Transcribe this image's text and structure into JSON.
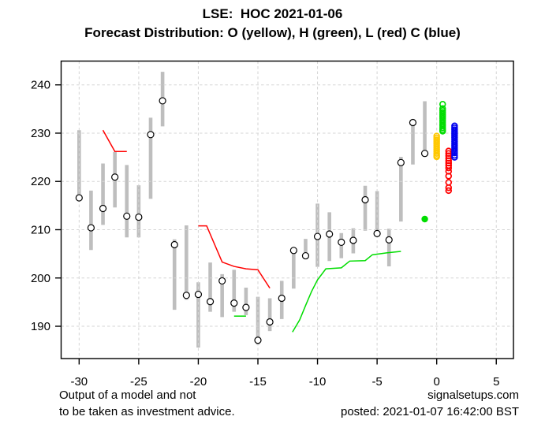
{
  "header": {
    "title": "LSE:  HOC 2021-01-06",
    "subtitle": "Forecast Distribution: O (yellow), H (green), L (red) C (blue)"
  },
  "footer": {
    "disclaimer_line1": "Output of a model and not",
    "disclaimer_line2": "to be taken as investment advice.",
    "site": "signalsetups.com",
    "posted": "posted: 2021-01-07 16:42:00 BST"
  },
  "chart_data": {
    "type": "scatter",
    "title": "LSE:  HOC 2021-01-06",
    "subtitle": "Forecast Distribution: O (yellow), H (green), L (red) C (blue)",
    "xlabel": "",
    "ylabel": "",
    "xlim": [
      -31.51,
      6.44
    ],
    "ylim": [
      183.31,
      244.93
    ],
    "x_ticks": [
      -30,
      -25,
      -20,
      -15,
      -10,
      -5,
      0,
      5
    ],
    "y_ticks": [
      190,
      200,
      210,
      220,
      230,
      240
    ],
    "grid": true,
    "legend_position": "none",
    "bars_note": "grey vertical bar = daily high-low range, black open circle = close",
    "bars": [
      {
        "x": -30,
        "high": 230.6,
        "low": 216.2,
        "close": 216.6
      },
      {
        "x": -29,
        "high": 218.1,
        "low": 205.8,
        "close": 210.4
      },
      {
        "x": -28,
        "high": 223.7,
        "low": 211.0,
        "close": 214.4
      },
      {
        "x": -27,
        "high": 226.1,
        "low": 214.6,
        "close": 220.9
      },
      {
        "x": -26,
        "high": 223.4,
        "low": 208.4,
        "close": 212.8
      },
      {
        "x": -25,
        "high": 219.2,
        "low": 208.4,
        "close": 212.6
      },
      {
        "x": -24,
        "high": 233.2,
        "low": 216.4,
        "close": 229.7
      },
      {
        "x": -23,
        "high": 242.7,
        "low": 231.4,
        "close": 236.7
      },
      {
        "x": -22,
        "high": 208.0,
        "low": 193.4,
        "close": 206.9
      },
      {
        "x": -21,
        "high": 210.9,
        "low": 195.5,
        "close": 196.4
      },
      {
        "x": -20,
        "high": 199.1,
        "low": 185.6,
        "close": 196.6
      },
      {
        "x": -19,
        "high": 203.2,
        "low": 193.0,
        "close": 195.1
      },
      {
        "x": -18,
        "high": 200.8,
        "low": 191.9,
        "close": 199.4
      },
      {
        "x": -17,
        "high": 201.7,
        "low": 193.0,
        "close": 194.8
      },
      {
        "x": -16,
        "high": 198.0,
        "low": 192.3,
        "close": 193.9
      },
      {
        "x": -15,
        "high": 196.1,
        "low": 186.2,
        "close": 187.1
      },
      {
        "x": -14,
        "high": 195.8,
        "low": 189.0,
        "close": 190.9
      },
      {
        "x": -13,
        "high": 199.4,
        "low": 191.5,
        "close": 195.8
      },
      {
        "x": -12,
        "high": 206.0,
        "low": 197.8,
        "close": 205.7
      },
      {
        "x": -11,
        "high": 208.1,
        "low": 203.9,
        "close": 204.6
      },
      {
        "x": -10,
        "high": 215.4,
        "low": 202.3,
        "close": 208.6
      },
      {
        "x": -9,
        "high": 213.6,
        "low": 203.5,
        "close": 209.1
      },
      {
        "x": -8,
        "high": 209.3,
        "low": 204.1,
        "close": 207.4
      },
      {
        "x": -7,
        "high": 210.3,
        "low": 205.1,
        "close": 207.8
      },
      {
        "x": -6,
        "high": 219.1,
        "low": 209.8,
        "close": 216.2
      },
      {
        "x": -5,
        "high": 218.0,
        "low": 209.0,
        "close": 209.2
      },
      {
        "x": -4,
        "high": 210.2,
        "low": 202.4,
        "close": 207.9
      },
      {
        "x": -3,
        "high": 225.1,
        "low": 211.7,
        "close": 223.9
      },
      {
        "x": -2,
        "high": 232.5,
        "low": 223.5,
        "close": 232.2
      },
      {
        "x": -1,
        "high": 236.6,
        "low": 225.4,
        "close": 225.8
      }
    ],
    "red_line_segments": [
      [
        [
          -28,
          230.6
        ],
        [
          -27,
          226.2
        ],
        [
          -26,
          226.2
        ]
      ],
      [
        [
          -20,
          210.8
        ],
        [
          -19.3,
          210.8
        ],
        [
          -18,
          203.3
        ],
        [
          -17,
          202.4
        ],
        [
          -16,
          201.9
        ],
        [
          -15,
          201.7
        ],
        [
          -14,
          197.9
        ]
      ]
    ],
    "green_line_segments": [
      [
        [
          -17,
          192.1
        ],
        [
          -16,
          192.1
        ]
      ],
      [
        [
          -12.1,
          188.8
        ],
        [
          -11.5,
          191.3
        ],
        [
          -11,
          194.3
        ],
        [
          -10.5,
          197.2
        ],
        [
          -10,
          199.6
        ],
        [
          -9.3,
          201.9
        ],
        [
          -8,
          202.1
        ],
        [
          -7.3,
          203.5
        ],
        [
          -6,
          203.6
        ],
        [
          -5.4,
          204.8
        ],
        [
          -4.2,
          205.2
        ],
        [
          -3,
          205.5
        ]
      ]
    ],
    "green_dot": {
      "x": -1,
      "y": 212.2
    },
    "forecast_clusters": [
      {
        "name": "O",
        "color": "#FFC800",
        "x": 0,
        "values": [
          229.4,
          229.0,
          228.6,
          228.2,
          227.8,
          227.4,
          227.0,
          226.6,
          226.2,
          225.8,
          225.4,
          225.1
        ]
      },
      {
        "name": "H",
        "color": "#00DD00",
        "x": 0.5,
        "values": [
          236.0,
          235.1,
          234.7,
          234.3,
          233.9,
          233.5,
          233.1,
          232.7,
          232.3,
          231.9,
          231.5,
          231.1,
          230.7,
          230.4
        ]
      },
      {
        "name": "L",
        "color": "#FF0000",
        "x": 1.0,
        "values": [
          226.3,
          225.8,
          225.3,
          224.8,
          224.3,
          223.8,
          223.3,
          222.8,
          222.1,
          221.1,
          219.8,
          218.7,
          218.1
        ]
      },
      {
        "name": "C",
        "color": "#0000EE",
        "x": 1.5,
        "values": [
          231.5,
          231.1,
          230.7,
          230.3,
          229.9,
          229.5,
          229.1,
          228.7,
          228.3,
          227.9,
          227.5,
          227.1,
          226.7,
          226.3,
          225.9,
          225.4,
          225.0
        ]
      }
    ],
    "colors": {
      "bar": "#BEBEBE",
      "close_circle": "#000000",
      "grid": "#D5D5D5",
      "red_line": "#FF0000",
      "green_line": "#00DD00",
      "green_dot": "#00DD00",
      "axis": "#000000"
    }
  }
}
